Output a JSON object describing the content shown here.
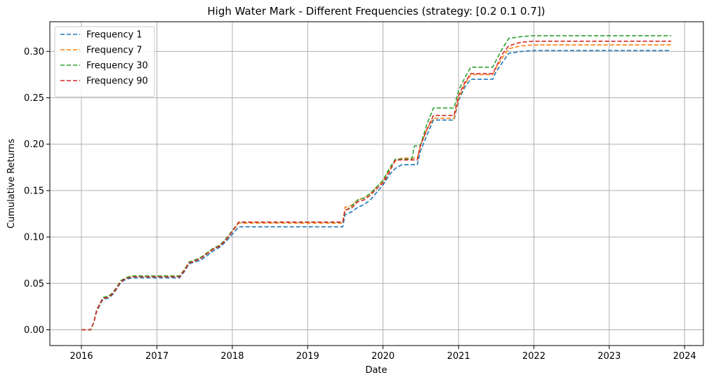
{
  "chart_data": {
    "type": "line",
    "title": "High Water Mark - Different Frequencies (strategy: [0.2 0.1 0.7])",
    "xlabel": "Date",
    "ylabel": "Cumulative Returns",
    "xlim": [
      "2015-08-01",
      "2024-04-01"
    ],
    "ylim": [
      -0.017,
      0.332
    ],
    "x_ticks": [
      "2016-01-01",
      "2017-01-01",
      "2018-01-01",
      "2019-01-01",
      "2020-01-01",
      "2021-01-01",
      "2022-01-01",
      "2023-01-01",
      "2024-01-01"
    ],
    "x_tick_labels": [
      "2016",
      "2017",
      "2018",
      "2019",
      "2020",
      "2021",
      "2022",
      "2023",
      "2024"
    ],
    "y_ticks": [
      0.0,
      0.05,
      0.1,
      0.15,
      0.2,
      0.25,
      0.3
    ],
    "y_tick_labels": [
      "0.00",
      "0.05",
      "0.10",
      "0.15",
      "0.20",
      "0.25",
      "0.30"
    ],
    "grid": true,
    "legend": "top-left",
    "line_style": "dashed",
    "series": [
      {
        "name": "Frequency 1",
        "color": "#1f77b4",
        "points": [
          [
            "2016-01-01",
            0.0
          ],
          [
            "2016-02-15",
            0.0
          ],
          [
            "2016-03-01",
            0.008
          ],
          [
            "2016-03-15",
            0.02
          ],
          [
            "2016-04-01",
            0.027
          ],
          [
            "2016-04-15",
            0.033
          ],
          [
            "2016-05-10",
            0.034
          ],
          [
            "2016-06-01",
            0.038
          ],
          [
            "2016-06-20",
            0.044
          ],
          [
            "2016-07-10",
            0.051
          ],
          [
            "2016-08-01",
            0.054
          ],
          [
            "2016-09-01",
            0.056
          ],
          [
            "2017-01-01",
            0.056
          ],
          [
            "2017-04-20",
            0.056
          ],
          [
            "2017-05-15",
            0.063
          ],
          [
            "2017-06-05",
            0.071
          ],
          [
            "2017-07-01",
            0.073
          ],
          [
            "2017-08-01",
            0.075
          ],
          [
            "2017-09-01",
            0.08
          ],
          [
            "2017-10-01",
            0.085
          ],
          [
            "2017-11-01",
            0.089
          ],
          [
            "2017-12-01",
            0.095
          ],
          [
            "2018-01-01",
            0.103
          ],
          [
            "2018-02-01",
            0.111
          ],
          [
            "2019-06-20",
            0.111
          ],
          [
            "2019-07-01",
            0.124
          ],
          [
            "2019-08-01",
            0.127
          ],
          [
            "2019-09-01",
            0.132
          ],
          [
            "2019-10-01",
            0.135
          ],
          [
            "2019-11-01",
            0.14
          ],
          [
            "2019-12-01",
            0.148
          ],
          [
            "2020-01-01",
            0.156
          ],
          [
            "2020-02-01",
            0.167
          ],
          [
            "2020-03-01",
            0.174
          ],
          [
            "2020-04-01",
            0.178
          ],
          [
            "2020-06-15",
            0.178
          ],
          [
            "2020-07-01",
            0.193
          ],
          [
            "2020-08-01",
            0.21
          ],
          [
            "2020-09-01",
            0.226
          ],
          [
            "2020-12-10",
            0.226
          ],
          [
            "2021-01-01",
            0.247
          ],
          [
            "2021-02-01",
            0.262
          ],
          [
            "2021-03-01",
            0.27
          ],
          [
            "2021-06-15",
            0.27
          ],
          [
            "2021-07-01",
            0.278
          ],
          [
            "2021-08-01",
            0.288
          ],
          [
            "2021-09-01",
            0.298
          ],
          [
            "2021-11-01",
            0.3
          ],
          [
            "2022-01-01",
            0.301
          ],
          [
            "2023-10-28",
            0.301
          ]
        ]
      },
      {
        "name": "Frequency 7",
        "color": "#ff7f0e",
        "points": [
          [
            "2016-01-01",
            0.0
          ],
          [
            "2016-02-15",
            0.0
          ],
          [
            "2016-03-01",
            0.008
          ],
          [
            "2016-03-15",
            0.021
          ],
          [
            "2016-04-01",
            0.028
          ],
          [
            "2016-04-15",
            0.034
          ],
          [
            "2016-05-10",
            0.035
          ],
          [
            "2016-06-01",
            0.039
          ],
          [
            "2016-06-20",
            0.045
          ],
          [
            "2016-07-10",
            0.052
          ],
          [
            "2016-08-01",
            0.055
          ],
          [
            "2016-09-01",
            0.058
          ],
          [
            "2017-01-01",
            0.058
          ],
          [
            "2017-04-20",
            0.058
          ],
          [
            "2017-05-15",
            0.065
          ],
          [
            "2017-06-05",
            0.072
          ],
          [
            "2017-07-01",
            0.074
          ],
          [
            "2017-08-01",
            0.077
          ],
          [
            "2017-09-01",
            0.082
          ],
          [
            "2017-10-01",
            0.087
          ],
          [
            "2017-11-01",
            0.091
          ],
          [
            "2017-12-01",
            0.097
          ],
          [
            "2018-01-01",
            0.106
          ],
          [
            "2018-02-01",
            0.115
          ],
          [
            "2019-06-20",
            0.115
          ],
          [
            "2019-07-01",
            0.132
          ],
          [
            "2019-08-01",
            0.134
          ],
          [
            "2019-09-01",
            0.14
          ],
          [
            "2019-10-01",
            0.142
          ],
          [
            "2019-11-01",
            0.147
          ],
          [
            "2019-12-01",
            0.154
          ],
          [
            "2020-01-01",
            0.16
          ],
          [
            "2020-02-01",
            0.172
          ],
          [
            "2020-03-01",
            0.182
          ],
          [
            "2020-04-01",
            0.185
          ],
          [
            "2020-06-15",
            0.185
          ],
          [
            "2020-07-01",
            0.199
          ],
          [
            "2020-08-01",
            0.216
          ],
          [
            "2020-09-01",
            0.228
          ],
          [
            "2020-12-10",
            0.228
          ],
          [
            "2021-01-01",
            0.249
          ],
          [
            "2021-02-01",
            0.265
          ],
          [
            "2021-03-01",
            0.275
          ],
          [
            "2021-06-15",
            0.275
          ],
          [
            "2021-07-01",
            0.282
          ],
          [
            "2021-08-01",
            0.293
          ],
          [
            "2021-09-01",
            0.303
          ],
          [
            "2021-11-01",
            0.306
          ],
          [
            "2022-01-01",
            0.307
          ],
          [
            "2023-10-28",
            0.307
          ]
        ]
      },
      {
        "name": "Frequency 30",
        "color": "#2ca02c",
        "points": [
          [
            "2016-01-01",
            0.0
          ],
          [
            "2016-02-15",
            0.0
          ],
          [
            "2016-03-01",
            0.008
          ],
          [
            "2016-03-15",
            0.022
          ],
          [
            "2016-04-01",
            0.029
          ],
          [
            "2016-04-15",
            0.035
          ],
          [
            "2016-05-10",
            0.036
          ],
          [
            "2016-06-01",
            0.04
          ],
          [
            "2016-06-20",
            0.046
          ],
          [
            "2016-07-10",
            0.053
          ],
          [
            "2016-08-01",
            0.056
          ],
          [
            "2016-09-01",
            0.058
          ],
          [
            "2017-01-01",
            0.058
          ],
          [
            "2017-04-20",
            0.058
          ],
          [
            "2017-05-15",
            0.065
          ],
          [
            "2017-06-05",
            0.073
          ],
          [
            "2017-07-01",
            0.075
          ],
          [
            "2017-08-01",
            0.078
          ],
          [
            "2017-09-01",
            0.083
          ],
          [
            "2017-10-01",
            0.088
          ],
          [
            "2017-11-01",
            0.091
          ],
          [
            "2017-12-01",
            0.098
          ],
          [
            "2018-01-01",
            0.107
          ],
          [
            "2018-02-01",
            0.116
          ],
          [
            "2019-06-20",
            0.116
          ],
          [
            "2019-07-01",
            0.128
          ],
          [
            "2019-08-01",
            0.133
          ],
          [
            "2019-09-01",
            0.14
          ],
          [
            "2019-10-01",
            0.142
          ],
          [
            "2019-11-01",
            0.147
          ],
          [
            "2019-12-01",
            0.154
          ],
          [
            "2020-01-01",
            0.161
          ],
          [
            "2020-02-01",
            0.174
          ],
          [
            "2020-03-01",
            0.184
          ],
          [
            "2020-04-01",
            0.184
          ],
          [
            "2020-05-20",
            0.184
          ],
          [
            "2020-06-01",
            0.198
          ],
          [
            "2020-07-01",
            0.199
          ],
          [
            "2020-08-01",
            0.222
          ],
          [
            "2020-09-01",
            0.239
          ],
          [
            "2020-12-10",
            0.239
          ],
          [
            "2021-01-01",
            0.258
          ],
          [
            "2021-02-01",
            0.272
          ],
          [
            "2021-03-01",
            0.283
          ],
          [
            "2021-06-15",
            0.283
          ],
          [
            "2021-07-01",
            0.29
          ],
          [
            "2021-08-01",
            0.303
          ],
          [
            "2021-09-01",
            0.314
          ],
          [
            "2021-11-01",
            0.316
          ],
          [
            "2022-01-01",
            0.317
          ],
          [
            "2023-10-28",
            0.317
          ]
        ]
      },
      {
        "name": "Frequency 90",
        "color": "#d62728",
        "points": [
          [
            "2016-01-01",
            0.0
          ],
          [
            "2016-02-15",
            0.0
          ],
          [
            "2016-03-01",
            0.008
          ],
          [
            "2016-03-15",
            0.021
          ],
          [
            "2016-04-01",
            0.029
          ],
          [
            "2016-04-15",
            0.034
          ],
          [
            "2016-05-10",
            0.035
          ],
          [
            "2016-06-01",
            0.039
          ],
          [
            "2016-06-20",
            0.045
          ],
          [
            "2016-07-10",
            0.052
          ],
          [
            "2016-08-01",
            0.055
          ],
          [
            "2016-09-01",
            0.057
          ],
          [
            "2017-01-01",
            0.057
          ],
          [
            "2017-04-20",
            0.057
          ],
          [
            "2017-05-15",
            0.064
          ],
          [
            "2017-06-05",
            0.072
          ],
          [
            "2017-07-01",
            0.074
          ],
          [
            "2017-08-01",
            0.077
          ],
          [
            "2017-09-01",
            0.082
          ],
          [
            "2017-10-01",
            0.087
          ],
          [
            "2017-11-01",
            0.09
          ],
          [
            "2017-12-01",
            0.097
          ],
          [
            "2018-01-01",
            0.106
          ],
          [
            "2018-02-01",
            0.116
          ],
          [
            "2019-06-20",
            0.116
          ],
          [
            "2019-07-01",
            0.129
          ],
          [
            "2019-08-01",
            0.131
          ],
          [
            "2019-09-01",
            0.138
          ],
          [
            "2019-10-01",
            0.14
          ],
          [
            "2019-11-01",
            0.145
          ],
          [
            "2019-12-01",
            0.152
          ],
          [
            "2020-01-01",
            0.158
          ],
          [
            "2020-02-01",
            0.17
          ],
          [
            "2020-03-01",
            0.183
          ],
          [
            "2020-04-01",
            0.183
          ],
          [
            "2020-06-15",
            0.183
          ],
          [
            "2020-07-01",
            0.199
          ],
          [
            "2020-08-01",
            0.216
          ],
          [
            "2020-09-01",
            0.231
          ],
          [
            "2020-12-10",
            0.231
          ],
          [
            "2021-01-01",
            0.252
          ],
          [
            "2021-02-01",
            0.267
          ],
          [
            "2021-03-01",
            0.276
          ],
          [
            "2021-06-15",
            0.276
          ],
          [
            "2021-07-01",
            0.283
          ],
          [
            "2021-08-01",
            0.297
          ],
          [
            "2021-09-01",
            0.306
          ],
          [
            "2021-11-01",
            0.31
          ],
          [
            "2022-01-01",
            0.311
          ],
          [
            "2023-10-28",
            0.311
          ]
        ]
      }
    ]
  }
}
